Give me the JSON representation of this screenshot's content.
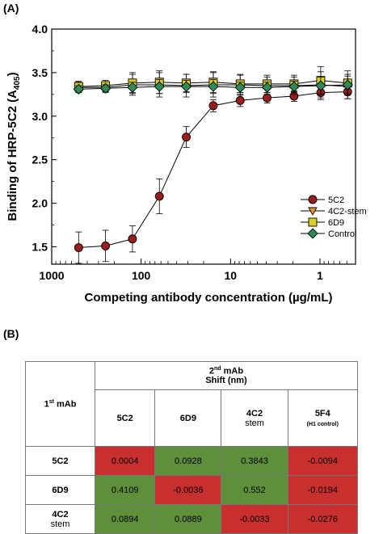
{
  "panel_a_label": "(A)",
  "panel_b_label": "(B)",
  "chart_data": {
    "type": "line",
    "ylabel_main": "Binding of HRP-5C2 (A",
    "ylabel_sub": "405",
    "ylabel_end": ")",
    "xlabel": "Competing antibody concentration (µg/mL)",
    "xscale": "log-reversed",
    "xlim": [
      1000,
      0.4
    ],
    "ylim": [
      1.3,
      4.0
    ],
    "xticks": [
      {
        "value": 1000,
        "label": "1000"
      },
      {
        "value": 100,
        "label": "100"
      },
      {
        "value": 10,
        "label": "10"
      },
      {
        "value": 1,
        "label": "1"
      }
    ],
    "yticks": [
      {
        "value": 1.5,
        "label": "1.5"
      },
      {
        "value": 2.0,
        "label": "2.0"
      },
      {
        "value": 2.5,
        "label": "2.5"
      },
      {
        "value": 3.0,
        "label": "3.0"
      },
      {
        "value": 3.5,
        "label": "3.5"
      },
      {
        "value": 4.0,
        "label": "4.0"
      }
    ],
    "x": [
      500,
      250,
      125,
      62.5,
      31.25,
      15.6,
      7.8,
      3.9,
      1.95,
      0.98,
      0.49
    ],
    "series": [
      {
        "name": "5C2",
        "marker": "circle",
        "color": "#9b1c1c",
        "values": [
          1.49,
          1.51,
          1.59,
          2.08,
          2.76,
          3.12,
          3.18,
          3.21,
          3.23,
          3.27,
          3.28
        ],
        "errors": [
          0.18,
          0.18,
          0.15,
          0.2,
          0.12,
          0.07,
          0.07,
          0.06,
          0.06,
          0.08,
          0.08
        ]
      },
      {
        "name": "4C2-stem",
        "marker": "triangle-down",
        "color": "#f08c2a",
        "values": [
          3.33,
          3.33,
          3.36,
          3.36,
          3.35,
          3.36,
          3.36,
          3.35,
          3.35,
          3.36,
          3.34
        ],
        "errors": [
          0.06,
          0.06,
          0.12,
          0.14,
          0.13,
          0.14,
          0.12,
          0.1,
          0.1,
          0.15,
          0.14
        ]
      },
      {
        "name": "6D9",
        "marker": "square",
        "color": "#d8cf2a",
        "values": [
          3.34,
          3.35,
          3.38,
          3.39,
          3.38,
          3.39,
          3.37,
          3.37,
          3.37,
          3.41,
          3.38
        ],
        "errors": [
          0.06,
          0.06,
          0.12,
          0.13,
          0.1,
          0.12,
          0.1,
          0.1,
          0.1,
          0.16,
          0.14
        ]
      },
      {
        "name": "Control",
        "marker": "diamond",
        "color": "#2e8b57",
        "values": [
          3.31,
          3.32,
          3.33,
          3.34,
          3.34,
          3.34,
          3.33,
          3.33,
          3.34,
          3.35,
          3.36
        ],
        "errors": [
          0.04,
          0.04,
          0.06,
          0.08,
          0.07,
          0.08,
          0.06,
          0.06,
          0.06,
          0.1,
          0.1
        ]
      }
    ],
    "legend_position": "bottom-right",
    "grid": false
  },
  "table": {
    "corner_main": "1",
    "corner_sup": "st",
    "corner_rest": " mAb",
    "header_main": "2",
    "header_sup": "nd",
    "header_rest": " mAb",
    "header_shift": "Shift (nm)",
    "columns": [
      {
        "label": "5C2",
        "sub": ""
      },
      {
        "label": "6D9",
        "sub": ""
      },
      {
        "label": "4C2",
        "sub": "stem"
      },
      {
        "label": "5F4",
        "sub": "(H1 control)"
      }
    ],
    "rows": [
      {
        "label": "5C2",
        "sub": "",
        "cells": [
          {
            "value": "0.0004",
            "color": "red"
          },
          {
            "value": "0.0928",
            "color": "green"
          },
          {
            "value": "0.3843",
            "color": "green"
          },
          {
            "value": "-0.0094",
            "color": "red"
          }
        ]
      },
      {
        "label": "6D9",
        "sub": "",
        "cells": [
          {
            "value": "0.4109",
            "color": "green"
          },
          {
            "value": "-0.0036",
            "color": "red"
          },
          {
            "value": "0.552",
            "color": "green"
          },
          {
            "value": "-0.0194",
            "color": "red"
          }
        ]
      },
      {
        "label": "4C2",
        "sub": "stem",
        "cells": [
          {
            "value": "0.0894",
            "color": "green"
          },
          {
            "value": "0.0889",
            "color": "green"
          },
          {
            "value": "-0.0033",
            "color": "red"
          },
          {
            "value": "-0.0276",
            "color": "red"
          }
        ]
      }
    ]
  }
}
